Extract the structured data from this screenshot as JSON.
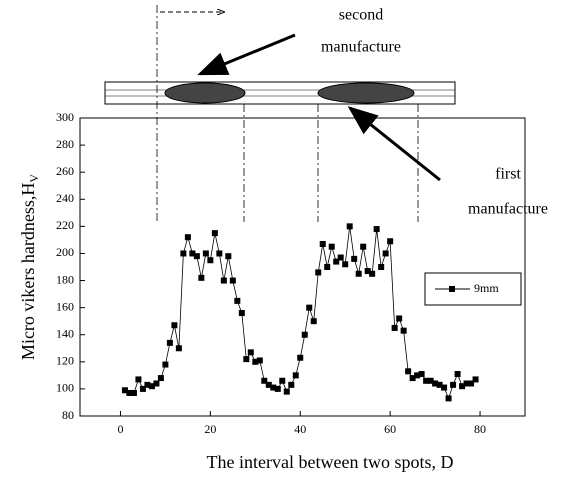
{
  "chart_data": {
    "type": "line",
    "x_label": "The interval between two spots, D",
    "y_label": "Micro vikers hardness,H",
    "y_label_sub": "V",
    "annotations": [
      "second",
      "manufacture",
      "first",
      "manufacture"
    ],
    "x": [
      1,
      2,
      3,
      4,
      5,
      6,
      7,
      8,
      9,
      10,
      11,
      12,
      13,
      14,
      15,
      16,
      17,
      18,
      19,
      20,
      21,
      22,
      23,
      24,
      25,
      26,
      27,
      28,
      29,
      30,
      31,
      32,
      33,
      34,
      35,
      36,
      37,
      38,
      39,
      40,
      41,
      42,
      43,
      44,
      45,
      46,
      47,
      48,
      49,
      50,
      51,
      52,
      53,
      54,
      55,
      56,
      57,
      58,
      59,
      60,
      61,
      62,
      63,
      64,
      65,
      66,
      67,
      68,
      69,
      70,
      71,
      72,
      73,
      74,
      75,
      76,
      77,
      78,
      79
    ],
    "series": [
      {
        "name": "9mm",
        "color": "#000000",
        "values": [
          99,
          97,
          97,
          107,
          100,
          103,
          102,
          104,
          108,
          118,
          134,
          147,
          130,
          200,
          212,
          200,
          198,
          182,
          200,
          195,
          215,
          200,
          180,
          198,
          180,
          165,
          156,
          122,
          127,
          120,
          121,
          106,
          103,
          101,
          100,
          106,
          98,
          103,
          110,
          123,
          140,
          160,
          150,
          186,
          207,
          190,
          205,
          194,
          197,
          192,
          220,
          196,
          185,
          205,
          187,
          185,
          218,
          190,
          200,
          209,
          145,
          152,
          143,
          113,
          108,
          110,
          111,
          106,
          106,
          104,
          103,
          101,
          93,
          103,
          111,
          102,
          104,
          104,
          107
        ]
      }
    ],
    "xlim": [
      -9,
      90
    ],
    "ylim": [
      80,
      300
    ],
    "xticks": [
      0,
      20,
      40,
      60,
      80
    ],
    "yticks": [
      80,
      100,
      120,
      140,
      160,
      180,
      200,
      220,
      240,
      260,
      280,
      300
    ]
  }
}
